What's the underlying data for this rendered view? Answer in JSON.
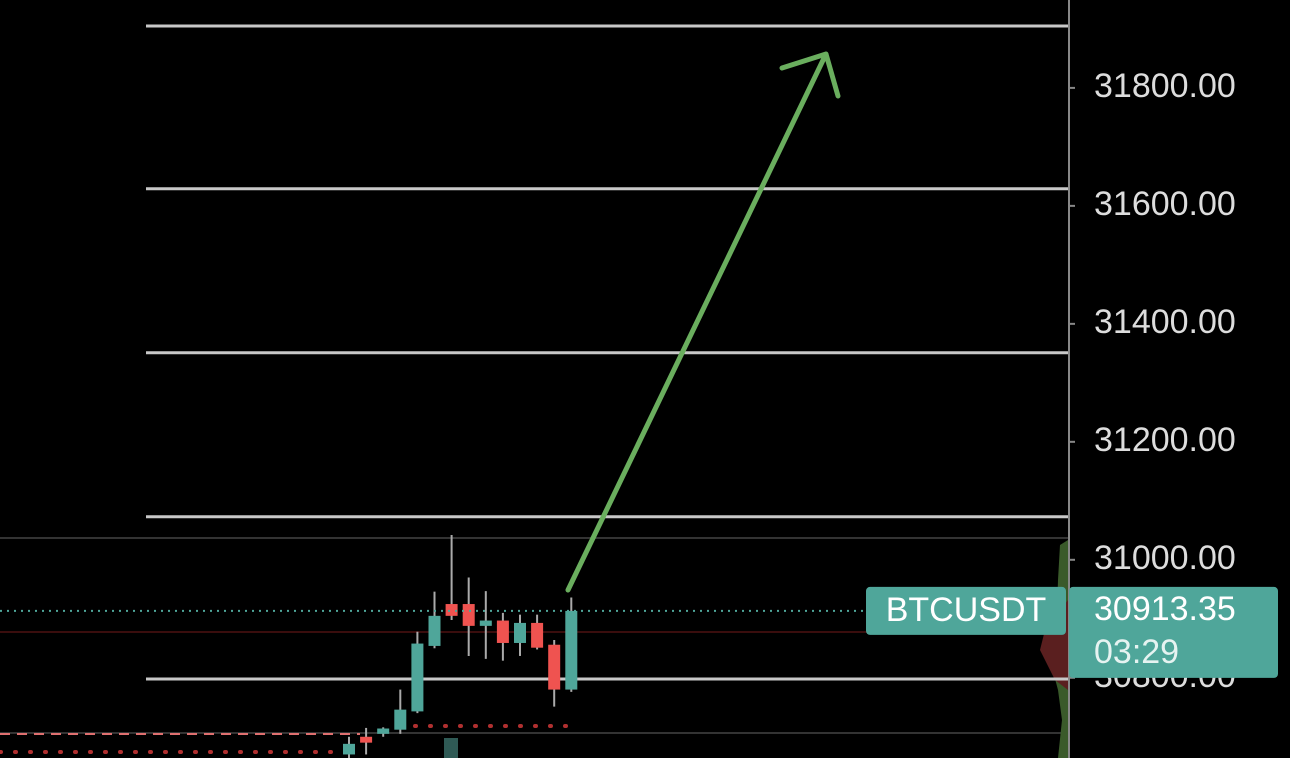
{
  "chart_data": {
    "type": "candlestick",
    "symbol": "BTCUSDT",
    "last_price": 30913.35,
    "countdown": "03:29",
    "up_color": "#4fa69a",
    "down_color": "#ef5350",
    "ylim": [
      30664,
      31949
    ],
    "yticks": [
      {
        "value": 31800,
        "label": "31800.00"
      },
      {
        "value": 31600,
        "label": "31600.00"
      },
      {
        "value": 31400,
        "label": "31400.00"
      },
      {
        "value": 31200,
        "label": "31200.00"
      },
      {
        "value": 31000,
        "label": "31000.00"
      },
      {
        "value": 30800,
        "label": "30800.00"
      }
    ],
    "hlines": [
      31905,
      31629,
      31351,
      31073,
      30798
    ],
    "open": [
      30670,
      30700,
      30705,
      30712,
      30743,
      30854,
      30925,
      30925,
      30888,
      30897,
      30859,
      30893,
      30856,
      30780
    ],
    "high": [
      30700,
      30715,
      30716,
      30780,
      30878,
      30946,
      31042,
      30970,
      30947,
      30910,
      30907,
      30907,
      30864,
      30936
    ],
    "low": [
      30664,
      30670,
      30700,
      30705,
      30740,
      30850,
      30898,
      30837,
      30832,
      30829,
      30837,
      30848,
      30751,
      30776
    ],
    "close": [
      30688,
      30690,
      30714,
      30746,
      30858,
      30905,
      30905,
      30888,
      30897,
      30859,
      30893,
      30851,
      30780,
      30913.35
    ]
  }
}
